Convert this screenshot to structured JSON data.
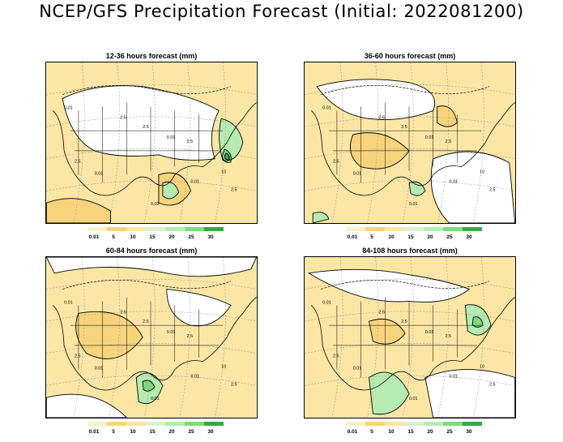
{
  "title": "NCEP/GFS Precipitation Forecast (Initial: 2022081200)",
  "colors": {
    "shade_light": "#fbe6a6",
    "shade_mid": "#f7d47c",
    "shade_green_light": "#b6ecb2",
    "shade_green_mid": "#7fd87f",
    "shade_green_dark": "#37a84a",
    "contour": "#000000",
    "grid": "#9a9a9a"
  },
  "panels": [
    {
      "title": "12-36 hours forecast (mm)",
      "labels": [
        "0.01",
        "2.5",
        "2.5",
        "0.01",
        "2.5",
        "0.01",
        "10",
        "0.01",
        "2.5",
        "0.01",
        "2.5"
      ]
    },
    {
      "title": "36-60 hours forecast (mm)",
      "labels": [
        "0.01",
        "2.5",
        "2.5",
        "0.01",
        "2.5",
        "0.01",
        "10",
        "0.01",
        "2.5",
        "0.01",
        "2.5"
      ]
    },
    {
      "title": "60-84 hours forecast (mm)",
      "labels": [
        "0.01",
        "2.5",
        "2.5",
        "0.01",
        "2.5",
        "0.01",
        "10",
        "0.01",
        "2.5",
        "0.01",
        "2.5"
      ]
    },
    {
      "title": "84-108 hours forecast (mm)",
      "labels": [
        "0.01",
        "2.5",
        "2.5",
        "0.01",
        "2.5",
        "0.01",
        "10",
        "0.01",
        "2.5",
        "0.01",
        "2.5"
      ]
    }
  ],
  "legend": {
    "labels": [
      "0.01",
      "5",
      "10",
      "15",
      "20",
      "25",
      "30"
    ],
    "colors": [
      "#fbf0c8",
      "#f7d47c",
      "#fbe6a6",
      "#d8f2d4",
      "#b6ecb2",
      "#7fd87f",
      "#37a84a"
    ]
  }
}
